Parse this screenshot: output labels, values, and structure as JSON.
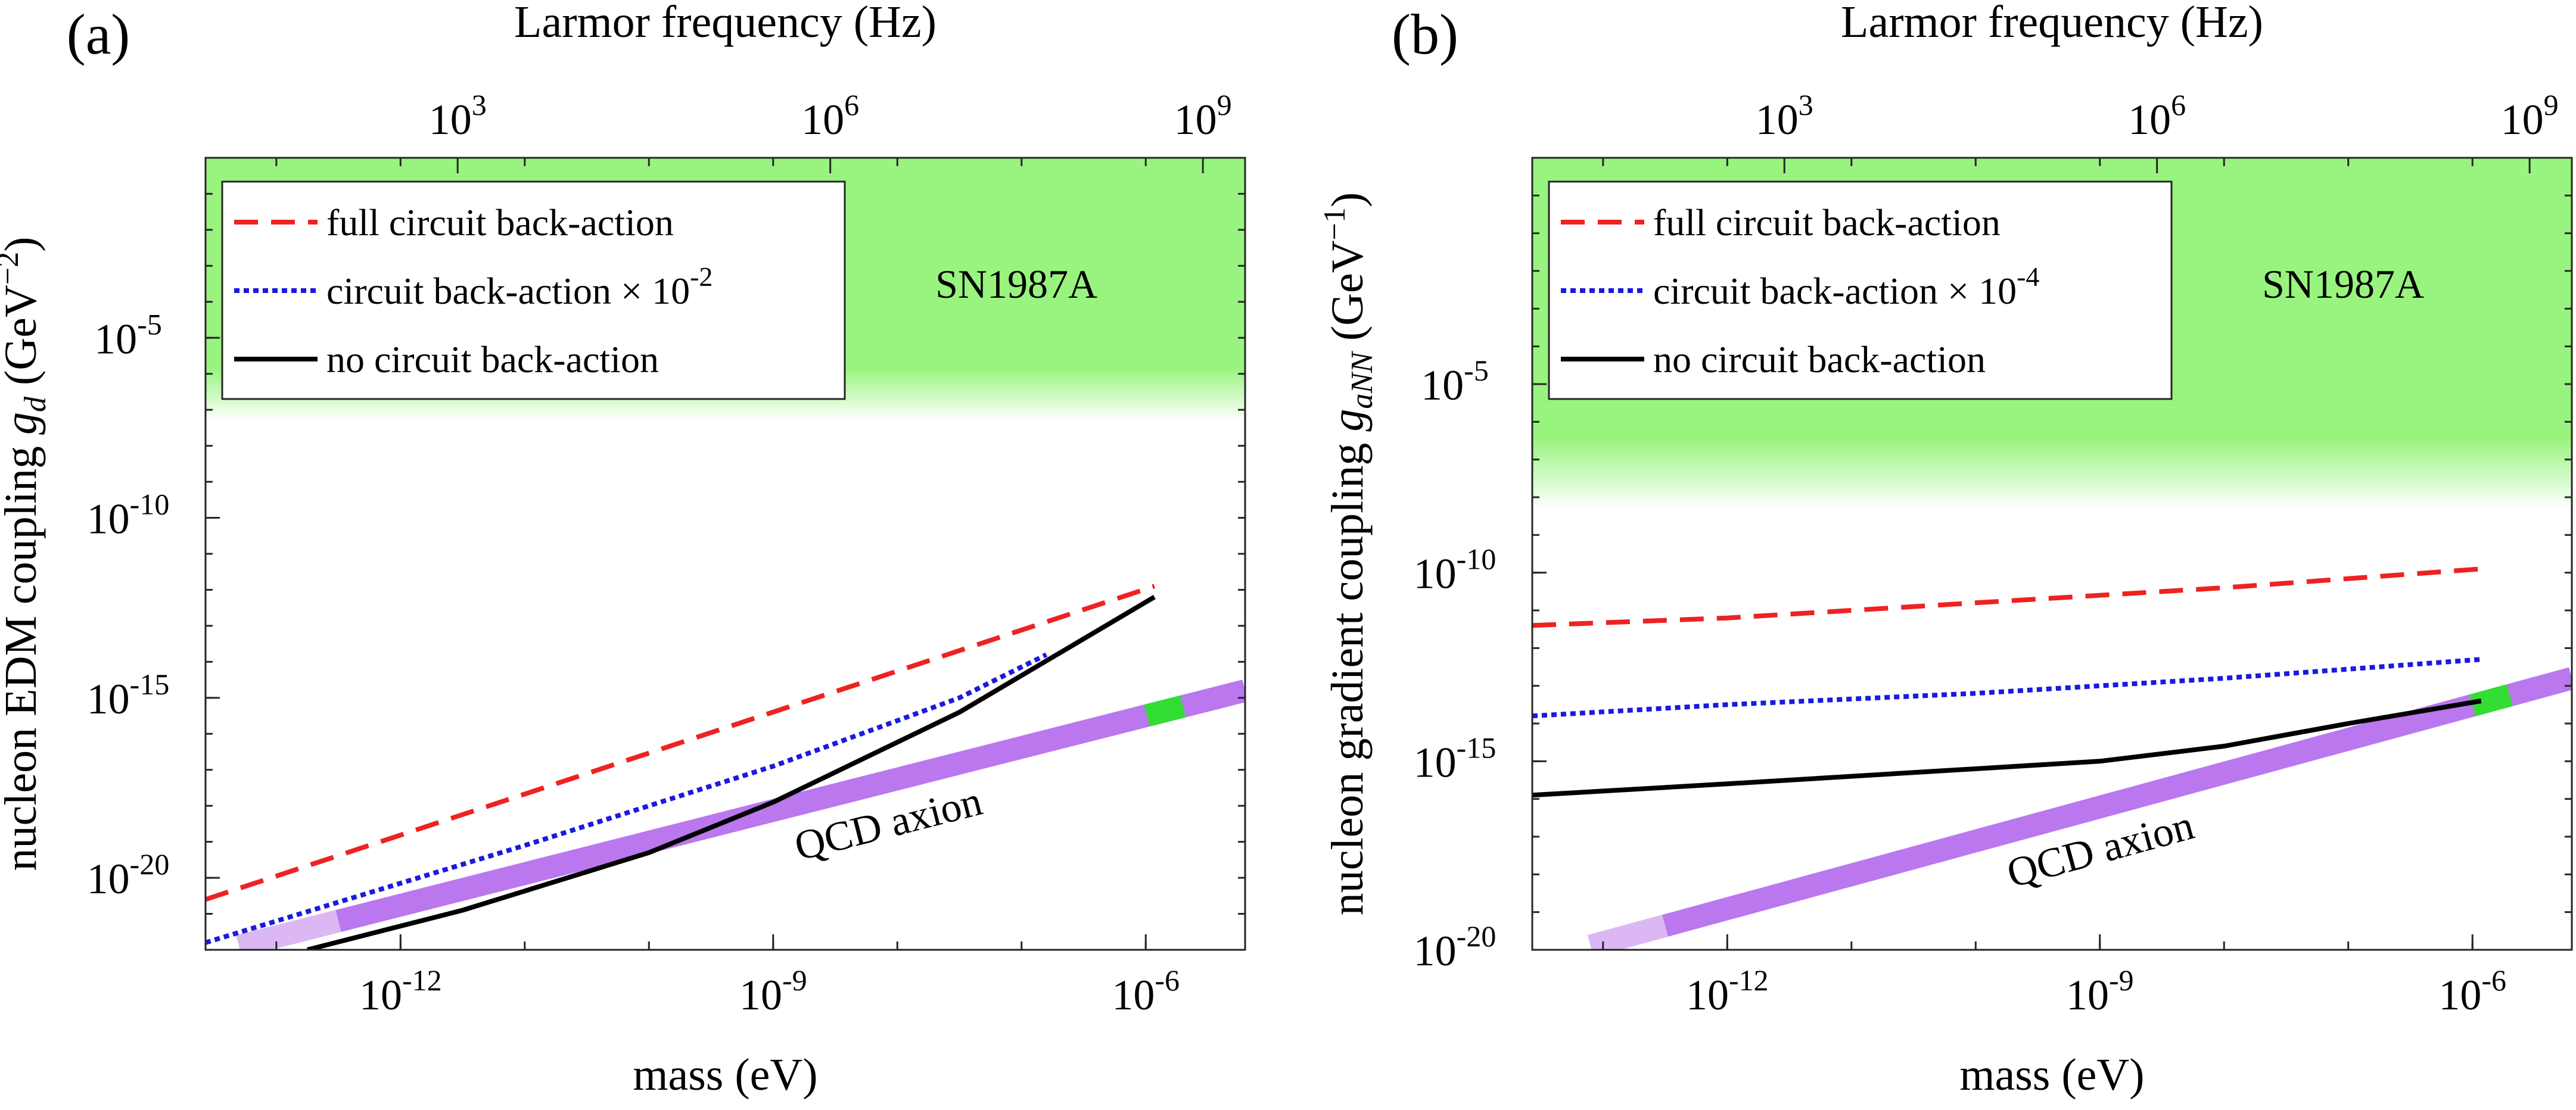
{
  "chart_data": [
    {
      "type": "line",
      "panel_label": "(a)",
      "xlabel": "mass (eV)",
      "top_axis_label": "Larmor frequency (Hz)",
      "ylabel_parts": [
        "nucleon EDM coupling ",
        "g",
        "d",
        " (GeV",
        "−2",
        ")"
      ],
      "x_scale": "log",
      "y_scale": "log",
      "xlim_exp": [
        -13.57,
        -5.2
      ],
      "ylim_exp": [
        -22.0,
        0.0
      ],
      "x_ticks": [
        {
          "base": "10",
          "exp": "-12"
        },
        {
          "base": "10",
          "exp": "-9"
        },
        {
          "base": "10",
          "exp": "-6"
        }
      ],
      "x_tick_exps": [
        -12,
        -9,
        -6
      ],
      "y_ticks": [
        {
          "base": "10",
          "exp": "-20"
        },
        {
          "base": "10",
          "exp": "-15"
        },
        {
          "base": "10",
          "exp": "-10"
        },
        {
          "base": "10",
          "exp": "-5"
        }
      ],
      "y_tick_exps": [
        -20,
        -15,
        -10,
        -5
      ],
      "top_ticks": [
        {
          "base": "10",
          "exp": "3"
        },
        {
          "base": "10",
          "exp": "6"
        },
        {
          "base": "10",
          "exp": "9"
        }
      ],
      "top_tick_mass_exps": [
        -11.54,
        -8.54,
        -5.54
      ],
      "excluded_region": {
        "label": "SN1987A",
        "y_exp_lower": -7.3,
        "color": "#98f47e"
      },
      "legend": [
        {
          "label": "full circuit back-action",
          "style": "dashed",
          "color": "#ee2222"
        },
        {
          "label_prefix": "circuit back-action × 10",
          "label_exp": "-2",
          "style": "dotted",
          "color": "#1a1ae0"
        },
        {
          "label": "no circuit back-action",
          "style": "solid",
          "color": "#000000"
        }
      ],
      "series": [
        {
          "name": "full circuit back-action",
          "style": "dashed",
          "color": "#ee2222",
          "x_exp": [
            -13.57,
            -5.93
          ],
          "y_exp": [
            -20.6,
            -11.9
          ]
        },
        {
          "name": "circuit back-action × 10^-2",
          "style": "dotted",
          "color": "#1a1ae0",
          "x_exp": [
            -13.57,
            -11.0,
            -9.0,
            -7.5,
            -6.8
          ],
          "y_exp": [
            -21.8,
            -19.1,
            -16.9,
            -15.0,
            -13.8
          ]
        },
        {
          "name": "no circuit back-action",
          "style": "solid",
          "color": "#000000",
          "x_exp": [
            -12.75,
            -11.5,
            -10.0,
            -9.0,
            -7.5,
            -5.93
          ],
          "y_exp": [
            -22.0,
            -20.9,
            -19.3,
            -17.9,
            -15.4,
            -12.2
          ]
        }
      ],
      "qcd_axion": {
        "label": "QCD axion",
        "color": "#bb77ee",
        "light_color": "#dbb8f4",
        "highlight_color": "#33dd33",
        "x_exp": [
          -13.3,
          -5.2
        ],
        "y_exp": [
          -21.9,
          -14.8
        ],
        "light_until_x_exp": -12.5,
        "highlight_x_exp": [
          -5.99,
          -5.7
        ]
      }
    },
    {
      "type": "line",
      "panel_label": "(b)",
      "xlabel": "mass (eV)",
      "top_axis_label": "Larmor frequency (Hz)",
      "ylabel_parts": [
        "nucleon gradient coupling ",
        "g",
        "aNN",
        " (GeV",
        "−1",
        ")"
      ],
      "x_scale": "log",
      "y_scale": "log",
      "xlim_exp": [
        -13.57,
        -5.2
      ],
      "ylim_exp": [
        -20.0,
        1.0
      ],
      "x_ticks": [
        {
          "base": "10",
          "exp": "-12"
        },
        {
          "base": "10",
          "exp": "-9"
        },
        {
          "base": "10",
          "exp": "-6"
        }
      ],
      "x_tick_exps": [
        -12,
        -9,
        -6
      ],
      "y_ticks": [
        {
          "base": "10",
          "exp": "-20"
        },
        {
          "base": "10",
          "exp": "-15"
        },
        {
          "base": "10",
          "exp": "-10"
        },
        {
          "base": "10",
          "exp": "-5"
        }
      ],
      "y_tick_exps": [
        -20,
        -15,
        -10,
        -5
      ],
      "top_ticks": [
        {
          "base": "10",
          "exp": "3"
        },
        {
          "base": "10",
          "exp": "6"
        },
        {
          "base": "10",
          "exp": "9"
        }
      ],
      "top_tick_mass_exps": [
        -11.54,
        -8.54,
        -5.54
      ],
      "excluded_region": {
        "label": "SN1987A",
        "y_exp_lower": -8.3,
        "color": "#98f47e"
      },
      "legend": [
        {
          "label": "full circuit back-action",
          "style": "dashed",
          "color": "#ee2222"
        },
        {
          "label_prefix": "circuit back-action × 10",
          "label_exp": "-4",
          "style": "dotted",
          "color": "#1a1ae0"
        },
        {
          "label": "no circuit back-action",
          "style": "solid",
          "color": "#000000"
        }
      ],
      "series": [
        {
          "name": "full circuit back-action",
          "style": "dashed",
          "color": "#ee2222",
          "x_exp": [
            -13.57,
            -12.0,
            -10.0,
            -8.0,
            -5.93
          ],
          "y_exp": [
            -11.4,
            -11.2,
            -10.8,
            -10.4,
            -9.9
          ]
        },
        {
          "name": "circuit back-action × 10^-4",
          "style": "dotted",
          "color": "#1a1ae0",
          "x_exp": [
            -13.57,
            -12.0,
            -10.0,
            -8.0,
            -5.93
          ],
          "y_exp": [
            -13.8,
            -13.5,
            -13.2,
            -12.8,
            -12.3
          ]
        },
        {
          "name": "no circuit back-action",
          "style": "solid",
          "color": "#000000",
          "x_exp": [
            -13.57,
            -12.0,
            -10.5,
            -9.0,
            -8.0,
            -7.0,
            -5.93
          ],
          "y_exp": [
            -15.9,
            -15.6,
            -15.3,
            -15.0,
            -14.6,
            -14.0,
            -13.4
          ]
        }
      ],
      "qcd_axion": {
        "label": "QCD axion",
        "color": "#bb77ee",
        "light_color": "#dbb8f4",
        "highlight_color": "#33dd33",
        "x_exp": [
          -13.1,
          -5.2
        ],
        "y_exp": [
          -19.9,
          -12.8
        ],
        "light_until_x_exp": -12.5,
        "highlight_x_exp": [
          -6.0,
          -5.7
        ]
      }
    }
  ]
}
